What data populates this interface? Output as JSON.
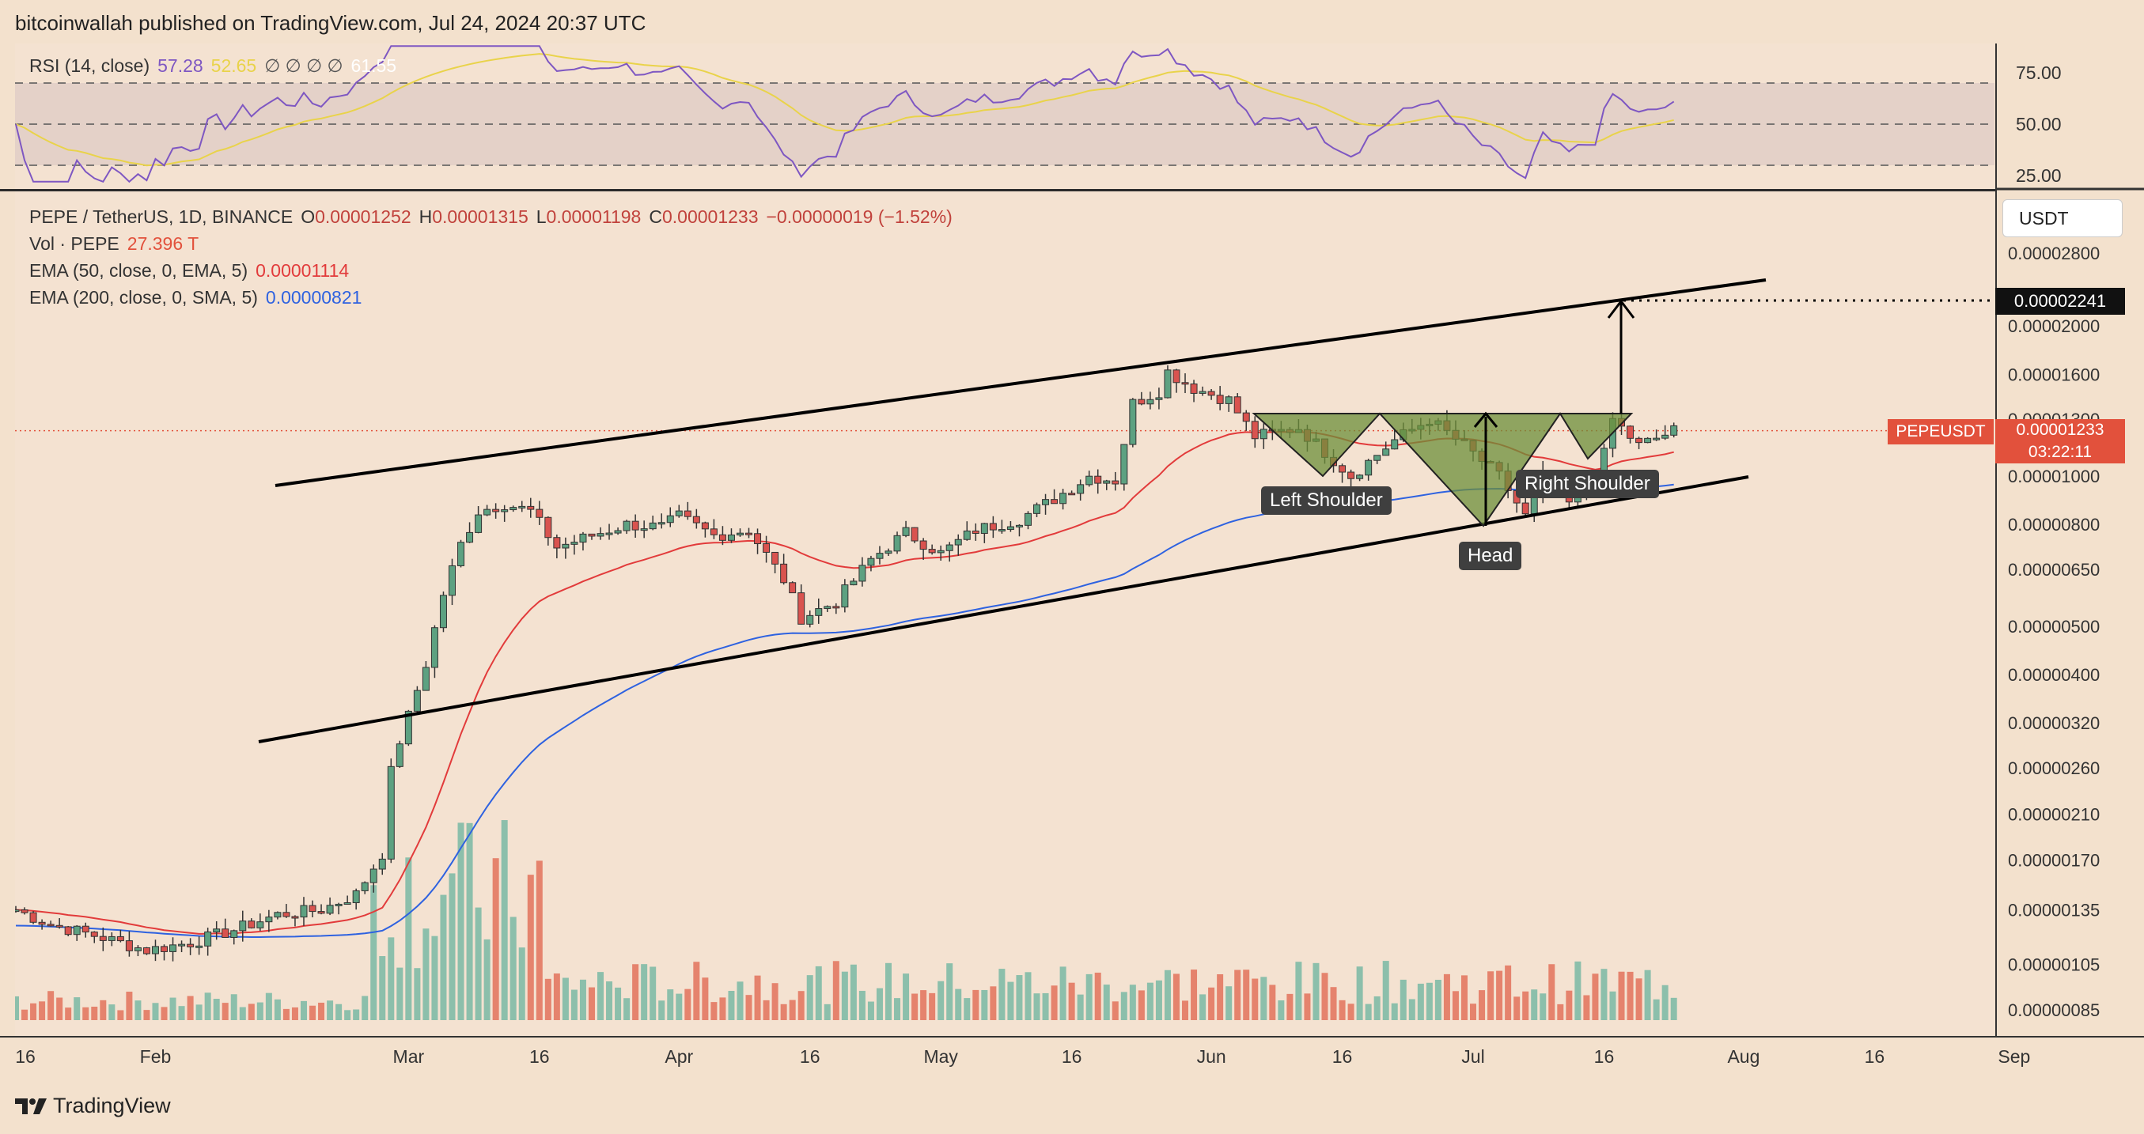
{
  "header": {
    "publisher": "bitcoinwallah published on TradingView.com, Jul 24, 2024 20:37 UTC"
  },
  "colors": {
    "up": "#79b8a4",
    "down": "#e2725c",
    "candle_up": "#5da181",
    "candle_down": "#d9534f",
    "ema50": "#e23b3b",
    "ema200": "#2e62e0",
    "rsi": "#7e57c2",
    "rsi_ma": "#e9d34a",
    "pattern": "#6e8f3a",
    "bg": "#f4e2d1"
  },
  "rsi_legend": {
    "name": "RSI (14, close)",
    "value": "57.28",
    "ma": "52.65",
    "extras": "∅ ∅ ∅ ∅",
    "extra_val": "61.55"
  },
  "legend": {
    "pair": "PEPE / TetherUS, 1D, BINANCE",
    "o_label": "O",
    "o": "0.00001252",
    "h_label": "H",
    "h": "0.00001315",
    "l_label": "L",
    "l": "0.00001198",
    "c_label": "C",
    "c": "0.00001233",
    "change": "−0.00000019 (−1.52%)",
    "vol_label": "Vol · PEPE",
    "vol": "27.396 T",
    "ema50_label": "EMA (50, close, 0, EMA, 5)",
    "ema50": "0.00001114",
    "ema200_label": "EMA (200, close, 0, SMA, 5)",
    "ema200": "0.00000821"
  },
  "price_axis": {
    "currency": "USDT",
    "target": "0.00002241",
    "symbol": "PEPEUSDT",
    "last": "0.00001233",
    "countdown": "03:22:11",
    "labels": [
      "0.00002800",
      "0.00002000",
      "0.00001600",
      "0.00001300",
      "0.00001000",
      "0.00000800",
      "0.00000650",
      "0.00000500",
      "0.00000400",
      "0.00000320",
      "0.00000260",
      "0.00000210",
      "0.00000170",
      "0.00000135",
      "0.00000105",
      "0.00000085"
    ]
  },
  "rsi_axis": {
    "labels": [
      "75.00",
      "50.00",
      "25.00"
    ]
  },
  "time_axis": {
    "labels": [
      "16",
      "Feb",
      "Mar",
      "16",
      "Apr",
      "16",
      "May",
      "16",
      "Jun",
      "16",
      "Jul",
      "16",
      "Aug",
      "16",
      "Sep"
    ]
  },
  "annotations": {
    "left_shoulder": "Left Shoulder",
    "head": "Head",
    "right_shoulder": "Right Shoulder"
  },
  "footer": {
    "brand": "TradingView"
  },
  "chart_data": {
    "type": "candlestick",
    "title": "PEPE / TetherUS, 1D, BINANCE",
    "scale": "log",
    "ylim": [
      7.8e-07,
      3.2e-06
    ],
    "x_range": [
      "2024-01-16",
      "2024-09-05"
    ],
    "series": [
      {
        "name": "PEPE / TetherUS",
        "type": "candlestick",
        "ohlc": []
      },
      {
        "name": "Vol · PEPE",
        "type": "bar",
        "values": []
      },
      {
        "name": "EMA (50, close, 0, EMA, 5)",
        "type": "line",
        "values": []
      },
      {
        "name": "EMA (200, close, 0, SMA, 5)",
        "type": "line",
        "values": []
      }
    ],
    "closes_by_date": [
      [
        "2024-01-16",
        1.35e-06
      ],
      [
        "2024-01-20",
        1.26e-06
      ],
      [
        "2024-01-25",
        1.2e-06
      ],
      [
        "2024-01-31",
        1.12e-06
      ],
      [
        "2024-02-05",
        1.16e-06
      ],
      [
        "2024-02-10",
        1.23e-06
      ],
      [
        "2024-02-15",
        1.32e-06
      ],
      [
        "2024-02-20",
        1.35e-06
      ],
      [
        "2024-02-24",
        1.45e-06
      ],
      [
        "2024-02-27",
        1.75e-06
      ],
      [
        "2024-02-28",
        2.55e-06
      ],
      [
        "2024-02-29",
        2.95e-06
      ],
      [
        "2024-03-01",
        3.3e-06
      ],
      [
        "2024-03-03",
        4.2e-06
      ],
      [
        "2024-03-05",
        5.8e-06
      ],
      [
        "2024-03-07",
        7.3e-06
      ],
      [
        "2024-03-09",
        8.5e-06
      ],
      [
        "2024-03-12",
        8.8e-06
      ],
      [
        "2024-03-15",
        8.5e-06
      ],
      [
        "2024-03-18",
        7.2e-06
      ],
      [
        "2024-03-22",
        7.6e-06
      ],
      [
        "2024-03-26",
        8e-06
      ],
      [
        "2024-03-30",
        7.9e-06
      ],
      [
        "2024-04-01",
        8.3e-06
      ],
      [
        "2024-04-05",
        7.6e-06
      ],
      [
        "2024-04-09",
        7.8e-06
      ],
      [
        "2024-04-13",
        6.2e-06
      ],
      [
        "2024-04-15",
        5.2e-06
      ],
      [
        "2024-04-19",
        5.6e-06
      ],
      [
        "2024-04-23",
        6.8e-06
      ],
      [
        "2024-04-27",
        7.7e-06
      ],
      [
        "2024-05-01",
        7e-06
      ],
      [
        "2024-05-05",
        7.8e-06
      ],
      [
        "2024-05-10",
        8.2e-06
      ],
      [
        "2024-05-14",
        9e-06
      ],
      [
        "2024-05-18",
        1e-05
      ],
      [
        "2024-05-21",
        9.8e-06
      ],
      [
        "2024-05-23",
        1.4e-05
      ],
      [
        "2024-05-26",
        1.48e-05
      ],
      [
        "2024-05-27",
        1.62e-05
      ],
      [
        "2024-05-30",
        1.5e-05
      ],
      [
        "2024-06-03",
        1.42e-05
      ],
      [
        "2024-06-06",
        1.2e-05
      ],
      [
        "2024-06-11",
        1.25e-05
      ],
      [
        "2024-06-17",
        1e-05
      ],
      [
        "2024-06-22",
        1.18e-05
      ],
      [
        "2024-06-26",
        1.3e-05
      ],
      [
        "2024-06-30",
        1.15e-05
      ],
      [
        "2024-07-04",
        1e-05
      ],
      [
        "2024-07-07",
        8.3e-06
      ],
      [
        "2024-07-09",
        1e-05
      ],
      [
        "2024-07-12",
        8.8e-06
      ],
      [
        "2024-07-15",
        9.4e-06
      ],
      [
        "2024-07-17",
        1.3e-05
      ],
      [
        "2024-07-20",
        1.15e-05
      ],
      [
        "2024-07-24",
        1.233e-05
      ]
    ]
  }
}
